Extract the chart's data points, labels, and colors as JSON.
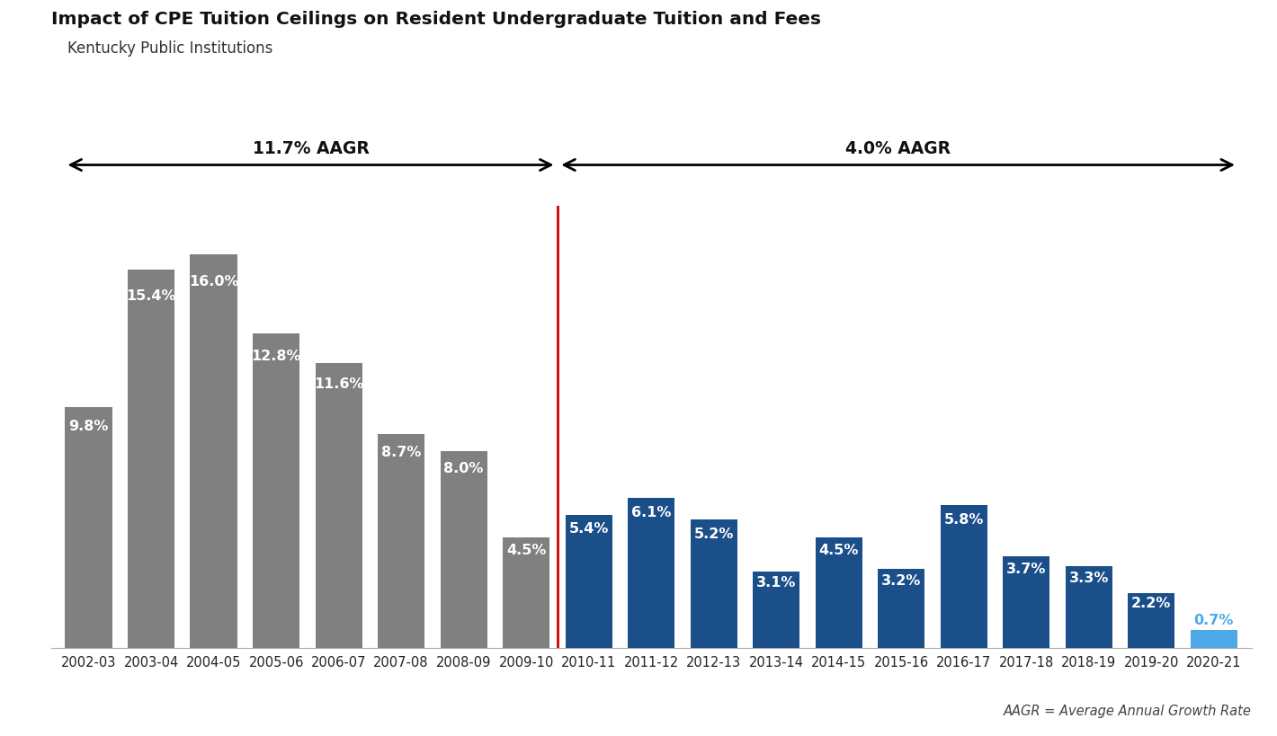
{
  "title": "Impact of CPE Tuition Ceilings on Resident Undergraduate Tuition and Fees",
  "subtitle": "Kentucky Public Institutions",
  "categories": [
    "2002-03",
    "2003-04",
    "2004-05",
    "2005-06",
    "2006-07",
    "2007-08",
    "2008-09",
    "2009-10",
    "2010-11",
    "2011-12",
    "2012-13",
    "2013-14",
    "2014-15",
    "2015-16",
    "2016-17",
    "2017-18",
    "2018-19",
    "2019-20",
    "2020-21"
  ],
  "values": [
    9.8,
    15.4,
    16.0,
    12.8,
    11.6,
    8.7,
    8.0,
    4.5,
    5.4,
    6.1,
    5.2,
    3.1,
    4.5,
    3.2,
    5.8,
    3.7,
    3.3,
    2.2,
    0.7
  ],
  "labels": [
    "9.8%",
    "15.4%",
    "16.0%",
    "12.8%",
    "11.6%",
    "8.7%",
    "8.0%",
    "4.5%",
    "5.4%",
    "6.1%",
    "5.2%",
    "3.1%",
    "4.5%",
    "3.2%",
    "5.8%",
    "3.7%",
    "3.3%",
    "2.2%",
    "0.7%"
  ],
  "bar_color_gray": "#808080",
  "bar_color_blue": "#1b4f8a",
  "bar_color_lightblue": "#4da8e8",
  "divider_index": 8,
  "divider_color": "#cc0000",
  "aagr1_text": "11.7% AAGR",
  "aagr2_text": "4.0% AAGR",
  "background_color": "#ffffff",
  "footnote": "AAGR = Average Annual Growth Rate",
  "ylim": [
    0,
    18
  ],
  "bar_width": 0.75
}
